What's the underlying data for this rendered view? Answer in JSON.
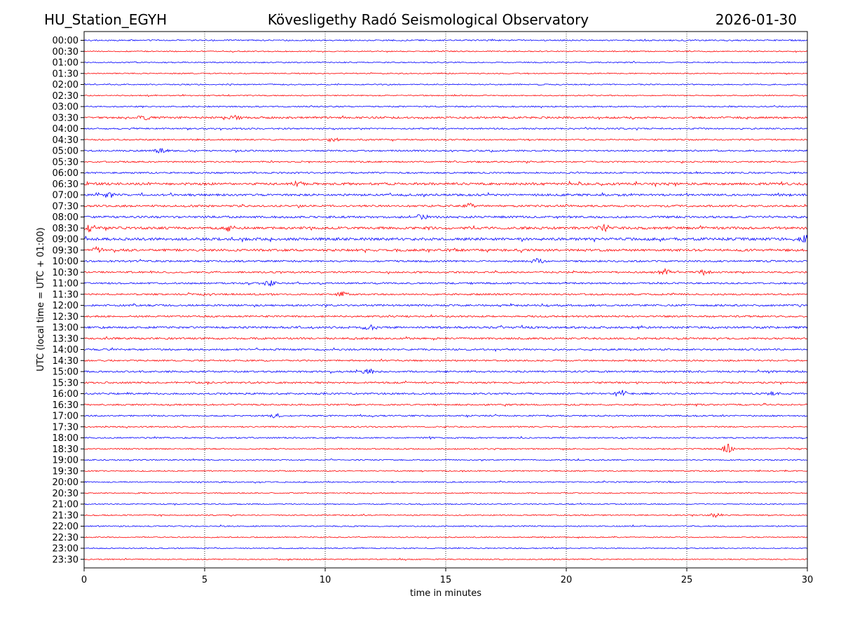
{
  "header": {
    "station": "HU_Station_EGYH",
    "observatory": "Kövesligethy Radó Seismological Observatory",
    "date": "2026-01-30"
  },
  "chart_data": {
    "type": "line",
    "title": "Kövesligethy Radó Seismological Observatory",
    "xlabel": "time in minutes",
    "ylabel": "UTC (local time = UTC + 01:00)",
    "xlim": [
      0,
      30
    ],
    "x_ticks": [
      0,
      5,
      10,
      15,
      20,
      25,
      30
    ],
    "grid": "vertical dotted lines every 5 minutes",
    "trace_colors": [
      "#0000ff",
      "#ff0000"
    ],
    "rows": [
      "00:00",
      "00:30",
      "01:00",
      "01:30",
      "02:00",
      "02:30",
      "03:00",
      "03:30",
      "04:00",
      "04:30",
      "05:00",
      "05:30",
      "06:00",
      "06:30",
      "07:00",
      "07:30",
      "08:00",
      "08:30",
      "09:00",
      "09:30",
      "10:00",
      "10:30",
      "11:00",
      "11:30",
      "12:00",
      "12:30",
      "13:00",
      "13:30",
      "14:00",
      "14:30",
      "15:00",
      "15:30",
      "16:00",
      "16:30",
      "17:00",
      "17:30",
      "18:00",
      "18:30",
      "19:00",
      "19:30",
      "20:00",
      "20:30",
      "21:00",
      "21:30",
      "22:00",
      "22:30",
      "23:00",
      "23:30"
    ],
    "noise_level": [
      1.0,
      0.8,
      0.9,
      0.8,
      0.9,
      0.8,
      1.0,
      1.5,
      1.1,
      1.1,
      1.2,
      1.1,
      1.2,
      1.8,
      1.6,
      1.5,
      1.6,
      1.9,
      2.0,
      1.8,
      1.4,
      1.3,
      1.3,
      1.3,
      1.4,
      1.3,
      1.6,
      1.4,
      1.3,
      1.2,
      1.4,
      1.3,
      1.3,
      1.2,
      1.1,
      1.0,
      1.0,
      1.0,
      0.9,
      0.9,
      0.9,
      0.8,
      0.8,
      0.9,
      0.9,
      0.8,
      0.8,
      0.8
    ],
    "events": [
      {
        "row": "03:30",
        "minute": 2.5,
        "amplitude": 3.0
      },
      {
        "row": "03:30",
        "minute": 6.3,
        "amplitude": 3.0
      },
      {
        "row": "04:30",
        "minute": 10.3,
        "amplitude": 3.0
      },
      {
        "row": "05:00",
        "minute": 3.2,
        "amplitude": 4.0
      },
      {
        "row": "06:30",
        "minute": 8.8,
        "amplitude": 3.5
      },
      {
        "row": "07:00",
        "minute": 1.0,
        "amplitude": 4.0
      },
      {
        "row": "07:30",
        "minute": 16.0,
        "amplitude": 3.0
      },
      {
        "row": "08:00",
        "minute": 14.0,
        "amplitude": 3.5
      },
      {
        "row": "08:30",
        "minute": 0.1,
        "amplitude": 6.0
      },
      {
        "row": "08:30",
        "minute": 6.0,
        "amplitude": 4.0
      },
      {
        "row": "08:30",
        "minute": 21.6,
        "amplitude": 5.0
      },
      {
        "row": "09:00",
        "minute": 29.9,
        "amplitude": 6.0
      },
      {
        "row": "09:30",
        "minute": 0.5,
        "amplitude": 3.5
      },
      {
        "row": "10:00",
        "minute": 18.8,
        "amplitude": 3.0
      },
      {
        "row": "10:30",
        "minute": 24.1,
        "amplitude": 4.0
      },
      {
        "row": "10:30",
        "minute": 25.7,
        "amplitude": 3.5
      },
      {
        "row": "11:00",
        "minute": 7.7,
        "amplitude": 4.5
      },
      {
        "row": "11:30",
        "minute": 10.7,
        "amplitude": 3.0
      },
      {
        "row": "13:00",
        "minute": 11.8,
        "amplitude": 3.5
      },
      {
        "row": "15:00",
        "minute": 11.8,
        "amplitude": 3.5
      },
      {
        "row": "16:00",
        "minute": 22.3,
        "amplitude": 7.0
      },
      {
        "row": "16:00",
        "minute": 28.6,
        "amplitude": 3.0
      },
      {
        "row": "17:00",
        "minute": 7.9,
        "amplitude": 3.0
      },
      {
        "row": "18:30",
        "minute": 26.7,
        "amplitude": 6.0
      },
      {
        "row": "21:30",
        "minute": 26.2,
        "amplitude": 2.5
      }
    ]
  }
}
